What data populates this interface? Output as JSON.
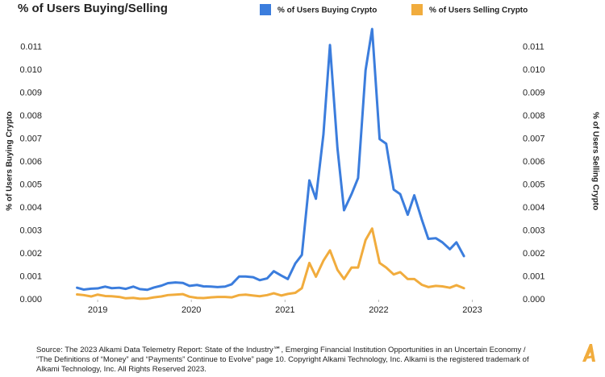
{
  "chart_data": {
    "type": "line",
    "title": "% of Users Buying/Selling",
    "y_label": "% of Users Buying Crypto",
    "y2_label": "% of Users Selling Crypto",
    "source": [
      "Source: The 2023 Alkami Data Telemetry Report: State of the Industry℠, Emerging Financial Institution Opportunities in an Uncertain Economy  /",
      "“The Definitions of “Money” and “Payments” Continue to Evolve” page 10. Copyright Alkami Technology, Inc. Alkami is the registered trademark of",
      "Alkami Technology, Inc. All Rights Reserved 2023."
    ],
    "legend": "top",
    "x": [
      2018.78,
      2018.85,
      2018.93,
      2019.0,
      2019.08,
      2019.15,
      2019.23,
      2019.3,
      2019.38,
      2019.45,
      2019.53,
      2019.6,
      2019.68,
      2019.75,
      2019.83,
      2019.91,
      2019.98,
      2020.06,
      2020.13,
      2020.21,
      2020.28,
      2020.36,
      2020.43,
      2020.51,
      2020.58,
      2020.66,
      2020.73,
      2020.81,
      2020.88,
      2020.96,
      2021.03,
      2021.11,
      2021.18,
      2021.26,
      2021.33,
      2021.41,
      2021.48,
      2021.56,
      2021.63,
      2021.71,
      2021.78,
      2021.86,
      2021.93,
      2022.01,
      2022.08,
      2022.16,
      2022.23,
      2022.31,
      2022.38,
      2022.46,
      2022.53,
      2022.61,
      2022.68,
      2022.76,
      2022.83,
      2022.91
    ],
    "xlim": [
      2018.56,
      2023.4
    ],
    "xticks": [
      2019,
      2020,
      2021,
      2022,
      2023
    ],
    "ylim": [
      0,
      0.0118
    ],
    "yticks": [
      {
        "value": 0,
        "label": "0.000"
      },
      {
        "value": 0.001,
        "label": "0.001"
      },
      {
        "value": 0.002,
        "label": "0.002"
      },
      {
        "value": 0.003,
        "label": "0.003"
      },
      {
        "value": 0.004,
        "label": "0.004"
      },
      {
        "value": 0.005,
        "label": "0.005"
      },
      {
        "value": 0.006,
        "label": "0.006"
      },
      {
        "value": 0.007,
        "label": "0.007"
      },
      {
        "value": 0.008,
        "label": "0.008"
      },
      {
        "value": 0.009,
        "label": "0.009"
      },
      {
        "value": 0.01,
        "label": "0.010"
      },
      {
        "value": 0.011,
        "label": "0.011"
      }
    ],
    "y2lim": [
      0,
      0.0118
    ],
    "y2ticks": [
      {
        "value": 0,
        "label": "0.000"
      },
      {
        "value": 0.001,
        "label": "0.001"
      },
      {
        "value": 0.002,
        "label": "0.002"
      },
      {
        "value": 0.003,
        "label": "0.003"
      },
      {
        "value": 0.004,
        "label": "0.004"
      },
      {
        "value": 0.005,
        "label": "0.005"
      },
      {
        "value": 0.006,
        "label": "0.006"
      },
      {
        "value": 0.007,
        "label": "0.007"
      },
      {
        "value": 0.008,
        "label": "0.008"
      },
      {
        "value": 0.009,
        "label": "0.009"
      },
      {
        "value": 0.01,
        "label": "0.010"
      },
      {
        "value": 0.011,
        "label": "0.011"
      }
    ],
    "grid": false,
    "series": [
      {
        "name": "% of Users Buying Crypto",
        "color": "#3b7ddd",
        "axis": "y",
        "values": [
          0.00052,
          0.00044,
          0.00048,
          0.00049,
          0.00057,
          0.0005,
          0.00052,
          0.00047,
          0.00057,
          0.00046,
          0.00043,
          0.00053,
          0.00061,
          0.00072,
          0.00075,
          0.00073,
          0.0006,
          0.00064,
          0.00058,
          0.00057,
          0.00055,
          0.00057,
          0.00067,
          0.00101,
          0.00101,
          0.00098,
          0.00085,
          0.00093,
          0.00124,
          0.00105,
          0.0009,
          0.00158,
          0.00195,
          0.0052,
          0.0044,
          0.0072,
          0.0111,
          0.0066,
          0.0039,
          0.0046,
          0.0053,
          0.01,
          0.0118,
          0.007,
          0.0068,
          0.0048,
          0.0046,
          0.0037,
          0.00455,
          0.0035,
          0.00265,
          0.00268,
          0.0025,
          0.0022,
          0.0025,
          0.0019
        ]
      },
      {
        "name": "% of Users Selling Crypto",
        "color": "#f1ac3d",
        "axis": "y2",
        "values": [
          0.00023,
          0.0002,
          0.00014,
          0.00022,
          0.00016,
          0.00015,
          0.00012,
          6e-05,
          8e-05,
          4e-05,
          5e-05,
          0.0001,
          0.00014,
          0.0002,
          0.00022,
          0.00024,
          0.00013,
          8e-05,
          7e-05,
          0.0001,
          0.00012,
          0.00012,
          0.0001,
          0.0002,
          0.00022,
          0.00018,
          0.00015,
          0.0002,
          0.00028,
          0.00018,
          0.00025,
          0.0003,
          0.0005,
          0.0016,
          0.001,
          0.0017,
          0.00215,
          0.0013,
          0.0009,
          0.0014,
          0.0014,
          0.0026,
          0.0031,
          0.0016,
          0.0014,
          0.0011,
          0.0012,
          0.0009,
          0.0009,
          0.00065,
          0.00055,
          0.0006,
          0.00058,
          0.00052,
          0.00063,
          0.0005
        ]
      }
    ]
  }
}
